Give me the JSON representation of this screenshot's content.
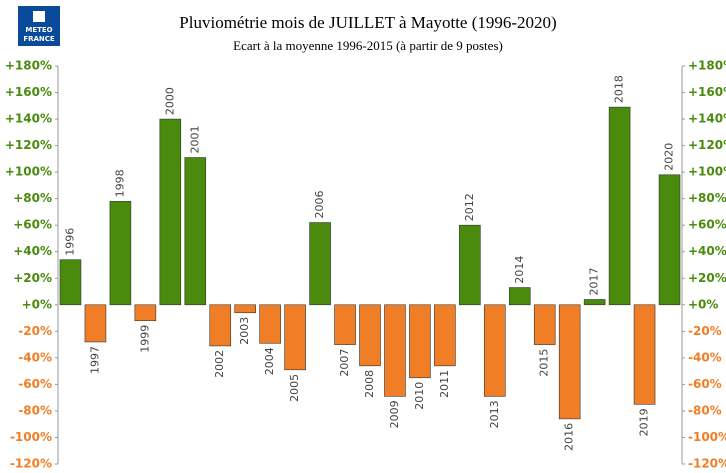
{
  "logo": {
    "line1": "METEO",
    "line2": "FRANCE"
  },
  "chart_data": {
    "type": "bar",
    "title": "Pluviométrie mois de JUILLET à Mayotte (1996-2020)",
    "subtitle": "Ecart à la moyenne 1996-2015 (à partir de 9 postes)",
    "categories": [
      "1996",
      "1997",
      "1998",
      "1999",
      "2000",
      "2001",
      "2002",
      "2003",
      "2004",
      "2005",
      "2006",
      "2007",
      "2008",
      "2009",
      "2010",
      "2011",
      "2012",
      "2013",
      "2014",
      "2015",
      "2016",
      "2017",
      "2018",
      "2019",
      "2020"
    ],
    "values": [
      34,
      -28,
      78,
      -12,
      140,
      111,
      -31,
      -6,
      -29,
      -49,
      62,
      -30,
      -46,
      -69,
      -55,
      -46,
      60,
      -69,
      13,
      -30,
      -86,
      4,
      149,
      -75,
      98
    ],
    "positive_color": "#4a8a0c",
    "negative_color": "#f07e26",
    "ylim": [
      -120,
      180
    ],
    "yticks": [
      {
        "value": 180,
        "label": "+180%"
      },
      {
        "value": 160,
        "label": "+160%"
      },
      {
        "value": 140,
        "label": "+140%"
      },
      {
        "value": 120,
        "label": "+120%"
      },
      {
        "value": 100,
        "label": "+100%"
      },
      {
        "value": 80,
        "label": "+80%"
      },
      {
        "value": 60,
        "label": "+60%"
      },
      {
        "value": 40,
        "label": "+40%"
      },
      {
        "value": 20,
        "label": "+20%"
      },
      {
        "value": 0,
        "label": "+0%"
      },
      {
        "value": -20,
        "label": "-20%"
      },
      {
        "value": -40,
        "label": "-40%"
      },
      {
        "value": -60,
        "label": "-60%"
      },
      {
        "value": -80,
        "label": "-80%"
      },
      {
        "value": -100,
        "label": "-100%"
      },
      {
        "value": -120,
        "label": "-120%"
      }
    ],
    "y2lim": [
      -120,
      180
    ],
    "y2ticks": [
      {
        "value": 180,
        "label": "+180%"
      },
      {
        "value": 160,
        "label": "+160%"
      },
      {
        "value": 140,
        "label": "+140%"
      },
      {
        "value": 120,
        "label": "+120%"
      },
      {
        "value": 100,
        "label": "+100%"
      },
      {
        "value": 80,
        "label": "+80%"
      },
      {
        "value": 60,
        "label": "+60%"
      },
      {
        "value": 40,
        "label": "+40%"
      },
      {
        "value": 20,
        "label": "+20%"
      },
      {
        "value": 0,
        "label": "+0%"
      },
      {
        "value": -20,
        "label": "-20%"
      },
      {
        "value": -40,
        "label": "-40%"
      },
      {
        "value": -60,
        "label": "-60%"
      },
      {
        "value": -80,
        "label": "-80%"
      },
      {
        "value": -100,
        "label": "-100%"
      },
      {
        "value": -120,
        "label": "-120%"
      }
    ],
    "grid": false
  }
}
